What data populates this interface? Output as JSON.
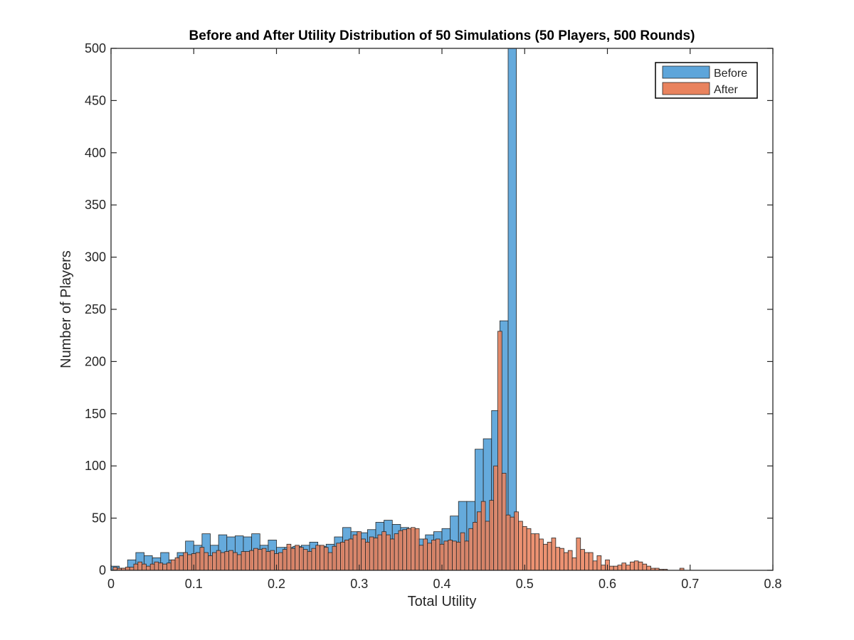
{
  "chart_data": {
    "type": "bar",
    "title": "Before and After Utility Distribution of 50 Simulations (50 Players, 500 Rounds)",
    "xlabel": "Total Utility",
    "ylabel": "Number of Players",
    "xlim": [
      0,
      0.8
    ],
    "ylim": [
      0,
      500
    ],
    "xticks": [
      0,
      0.1,
      0.2,
      0.3,
      0.4,
      0.5,
      0.6,
      0.7,
      0.8
    ],
    "xtick_labels": [
      "0",
      "0.1",
      "0.2",
      "0.3",
      "0.4",
      "0.5",
      "0.6",
      "0.7",
      "0.8"
    ],
    "yticks": [
      0,
      50,
      100,
      150,
      200,
      250,
      300,
      350,
      400,
      450,
      500
    ],
    "ytick_labels": [
      "0",
      "50",
      "100",
      "150",
      "200",
      "250",
      "300",
      "350",
      "400",
      "450",
      "500"
    ],
    "grid": false,
    "legend_position": "top-right",
    "series": [
      {
        "name": "Before",
        "color": "#5DA5DA",
        "bin_start": 0,
        "bin_width": 0.01,
        "values": [
          4,
          2,
          10,
          17,
          14,
          12,
          17,
          10,
          17,
          28,
          24,
          35,
          24,
          34,
          32,
          33,
          32,
          35,
          24,
          29,
          22,
          22,
          23,
          24,
          27,
          23,
          25,
          32,
          41,
          37,
          36,
          39,
          46,
          48,
          44,
          41,
          39,
          30,
          34,
          37,
          40,
          52,
          66,
          66,
          116,
          126,
          153,
          239,
          500,
          0
        ]
      },
      {
        "name": "After",
        "color": "#E9835E",
        "bin_start": 0.0025,
        "bin_width": 0.005,
        "values": [
          3,
          2,
          2,
          3,
          3,
          6,
          8,
          6,
          4,
          6,
          8,
          7,
          6,
          7,
          10,
          12,
          14,
          17,
          15,
          16,
          17,
          22,
          17,
          14,
          17,
          19,
          17,
          18,
          19,
          17,
          15,
          18,
          18,
          19,
          21,
          20,
          21,
          18,
          19,
          16,
          17,
          20,
          25,
          21,
          24,
          22,
          20,
          18,
          21,
          24,
          24,
          22,
          17,
          23,
          26,
          27,
          29,
          30,
          34,
          37,
          30,
          27,
          32,
          31,
          34,
          37,
          34,
          30,
          35,
          38,
          39,
          40,
          41,
          40,
          24,
          30,
          26,
          29,
          30,
          25,
          28,
          29,
          28,
          27,
          36,
          28,
          40,
          46,
          56,
          66,
          47,
          67,
          100,
          229,
          93,
          53,
          51,
          56,
          47,
          42,
          40,
          35,
          35,
          30,
          25,
          27,
          31,
          22,
          21,
          17,
          19,
          12,
          31,
          20,
          17,
          17,
          9,
          14,
          5,
          10,
          4,
          4,
          5,
          7,
          5,
          8,
          9,
          8,
          6,
          4,
          2,
          2,
          1,
          1,
          0,
          0,
          0,
          2,
          0,
          0,
          0,
          0,
          0,
          0,
          0,
          0
        ]
      }
    ]
  }
}
